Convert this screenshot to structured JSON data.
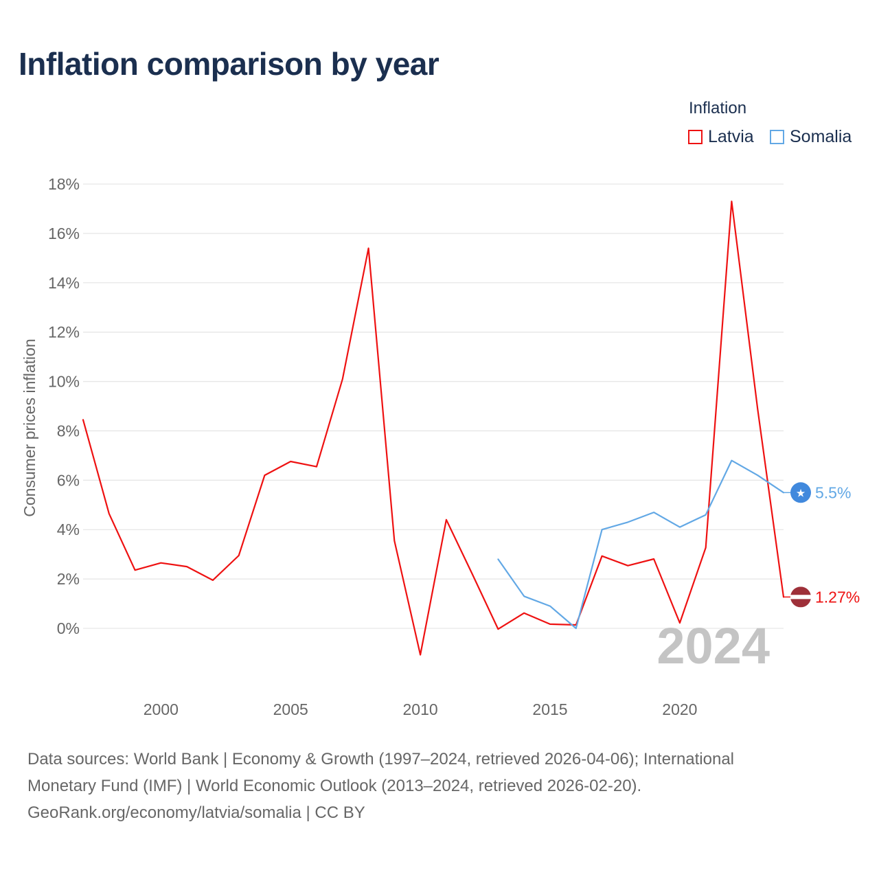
{
  "title": "Inflation comparison by year",
  "legend": {
    "title": "Inflation",
    "items": [
      {
        "label": "Latvia",
        "color": "#ee1111"
      },
      {
        "label": "Somalia",
        "color": "#62a8e5"
      }
    ]
  },
  "chart_data": {
    "type": "line",
    "title": "Inflation comparison by year",
    "ylabel": "Consumer prices inflation",
    "xlabel": "",
    "xlim": [
      1997,
      2024
    ],
    "ylim": [
      -3,
      18
    ],
    "y_ticks": [
      0,
      2,
      4,
      6,
      8,
      10,
      12,
      14,
      16,
      18
    ],
    "x_ticks": [
      2000,
      2005,
      2010,
      2015,
      2020
    ],
    "grid": true,
    "current_year": "2024",
    "series": [
      {
        "name": "Latvia",
        "color": "#ee1111",
        "end_label": "1.27%",
        "x": [
          1997,
          1998,
          1999,
          2000,
          2001,
          2002,
          2003,
          2004,
          2005,
          2006,
          2007,
          2008,
          2009,
          2010,
          2011,
          2012,
          2013,
          2014,
          2015,
          2016,
          2017,
          2018,
          2019,
          2020,
          2021,
          2022,
          2023,
          2024
        ],
        "values": [
          8.45,
          4.65,
          2.36,
          2.65,
          2.5,
          1.95,
          2.95,
          6.2,
          6.76,
          6.55,
          10.1,
          15.4,
          3.55,
          -1.07,
          4.4,
          2.2,
          -0.03,
          0.62,
          0.17,
          0.14,
          2.93,
          2.54,
          2.81,
          0.22,
          3.27,
          17.3,
          8.9,
          1.27
        ]
      },
      {
        "name": "Somalia",
        "color": "#62a8e5",
        "end_label": "5.5%",
        "x": [
          2013,
          2014,
          2015,
          2016,
          2017,
          2018,
          2019,
          2020,
          2021,
          2022,
          2023,
          2024
        ],
        "values": [
          2.8,
          1.3,
          0.9,
          0.0,
          4.0,
          4.3,
          4.7,
          4.1,
          4.6,
          6.8,
          6.2,
          5.5
        ]
      }
    ]
  },
  "source": {
    "line1": "Data sources: World Bank | Economy & Growth (1997–2024, retrieved 2026-04-06); International",
    "line2": "Monetary Fund (IMF) | World Economic Outlook (2013–2024, retrieved 2026-02-20).",
    "line3": "GeoRank.org/economy/latvia/somalia | CC BY"
  }
}
